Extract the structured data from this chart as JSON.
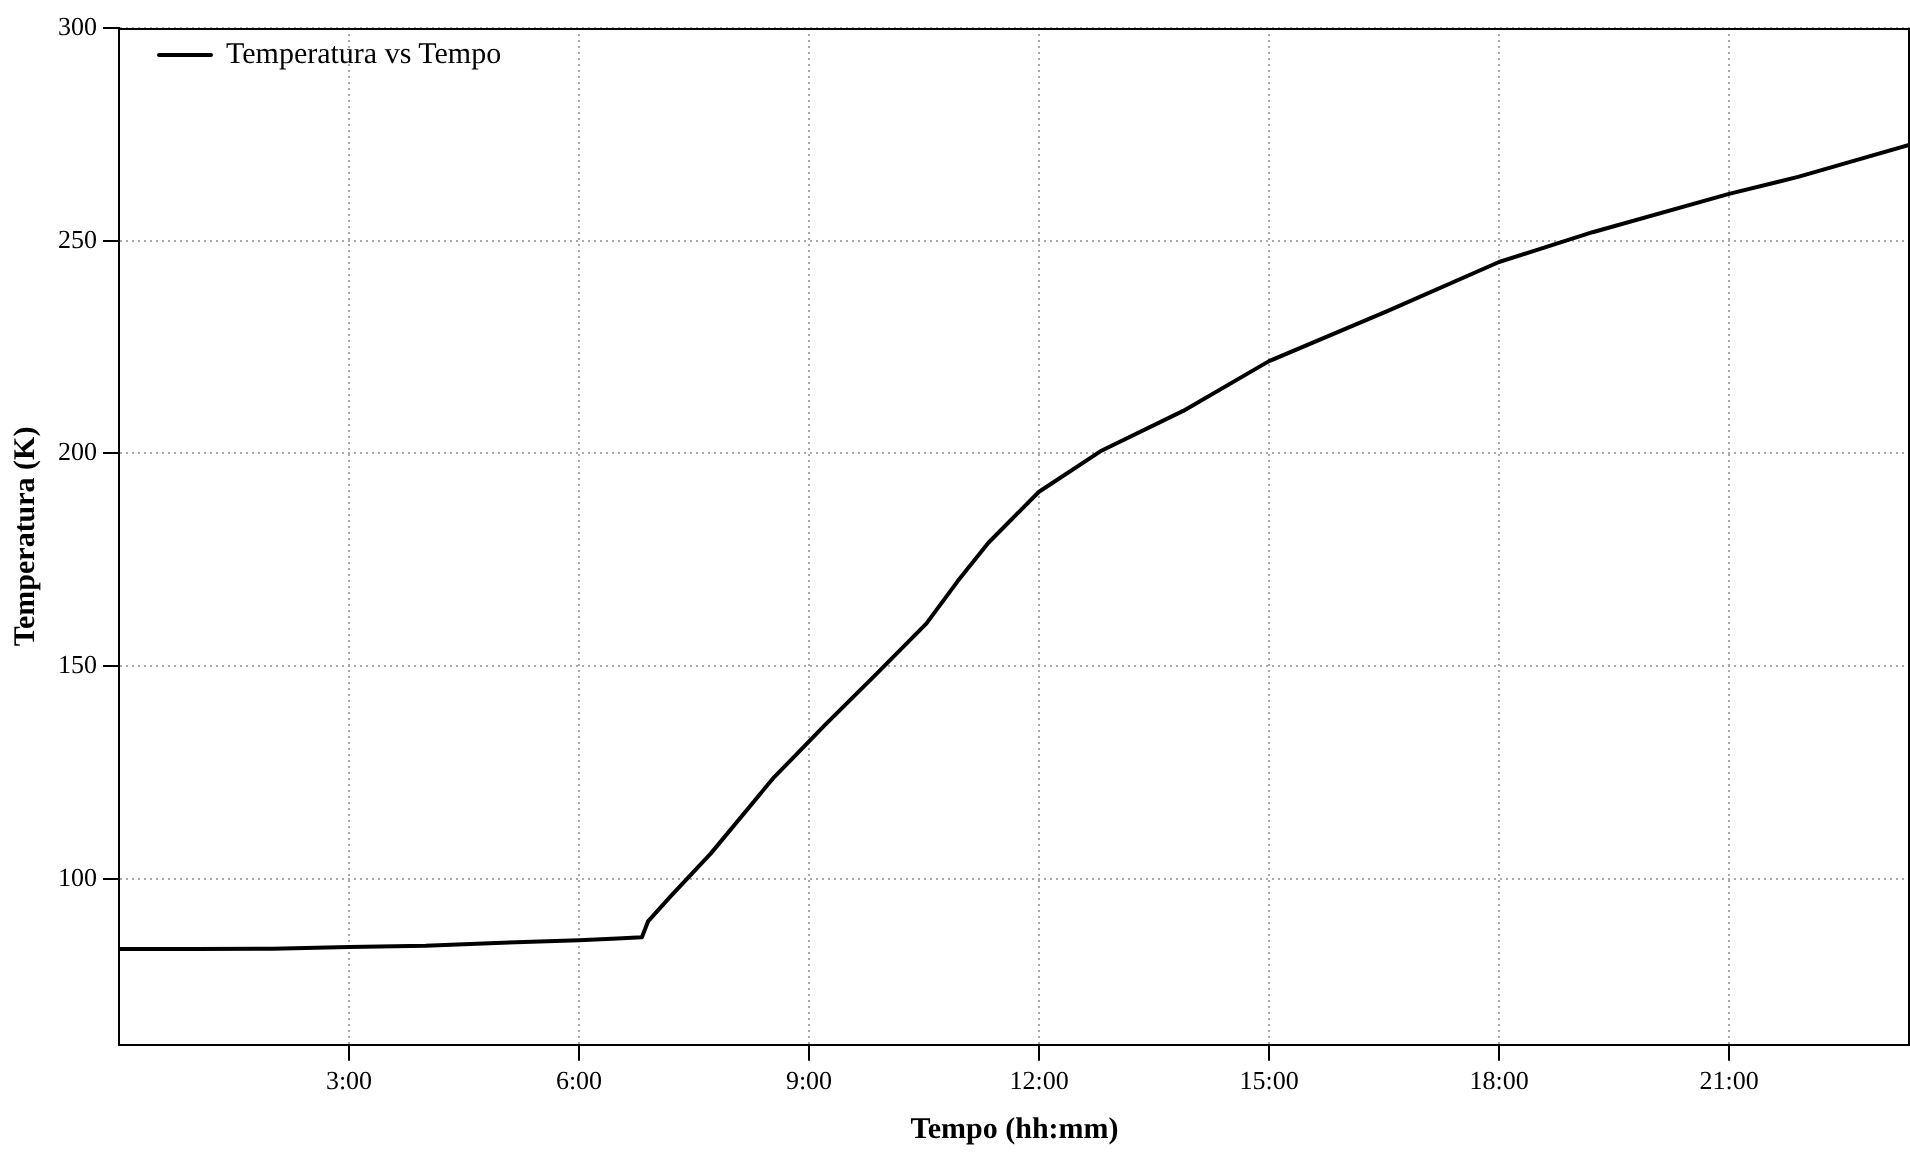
{
  "chart_data": {
    "type": "line",
    "xlabel": "Tempo (hh:mm)",
    "ylabel": "Temperatura (K)",
    "legend": "top left",
    "grid": true,
    "marker": "none",
    "line_style": "solid",
    "xlim": [
      0,
      23.36
    ],
    "ylim": [
      61,
      300
    ],
    "xticks": [
      {
        "value": 3,
        "label": "3:00"
      },
      {
        "value": 6,
        "label": "6:00"
      },
      {
        "value": 9,
        "label": "9:00"
      },
      {
        "value": 12,
        "label": "12:00"
      },
      {
        "value": 15,
        "label": "15:00"
      },
      {
        "value": 18,
        "label": "18:00"
      },
      {
        "value": 21,
        "label": "21:00"
      }
    ],
    "yticks": [
      100,
      150,
      200,
      250,
      300
    ],
    "series": [
      {
        "name": "Temperatura vs Tempo",
        "color": "#000000",
        "x": [
          0,
          1,
          2,
          3,
          4,
          5,
          6,
          6.5,
          6.82,
          6.9,
          7.2,
          7.72,
          8.53,
          9.2,
          9.87,
          10.53,
          10.94,
          11.34,
          12,
          12.8,
          13.88,
          15,
          16.55,
          18,
          19.22,
          21,
          21.9,
          23.36
        ],
        "values": [
          83.5,
          83.5,
          83.6,
          84,
          84.3,
          85,
          85.6,
          86,
          86.3,
          90,
          96,
          106,
          123.6,
          136,
          148,
          160,
          170,
          179,
          191,
          200.5,
          210,
          221.7,
          233.5,
          245,
          252,
          261,
          265,
          272.6
        ]
      }
    ]
  }
}
